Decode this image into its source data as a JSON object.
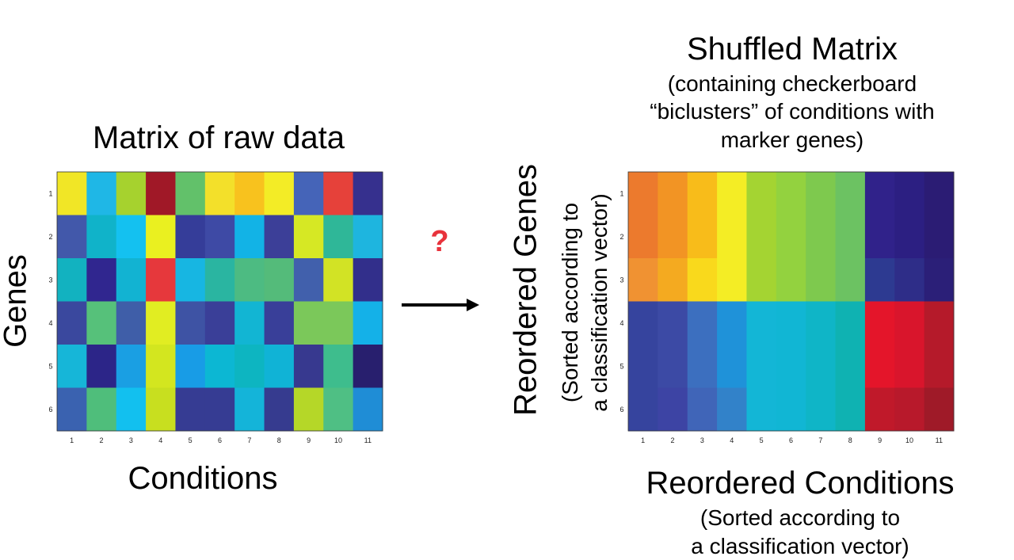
{
  "left": {
    "title": "Matrix of raw data",
    "ylabel": "Genes",
    "xlabel": "Conditions",
    "cols": [
      "1",
      "2",
      "3",
      "4",
      "5",
      "6",
      "7",
      "8",
      "9",
      "10",
      "11"
    ],
    "rows": [
      "1",
      "2",
      "3",
      "4",
      "5",
      "6"
    ],
    "colors": [
      [
        "#f1e626",
        "#1fb7e6",
        "#a6d22e",
        "#a01827",
        "#62c16a",
        "#f3e02a",
        "#f8c21e",
        "#f3ec26",
        "#4564b8",
        "#e6413a",
        "#36308e"
      ],
      [
        "#4258aa",
        "#10b3c9",
        "#14c1f0",
        "#eaf020",
        "#353d99",
        "#3e4aa5",
        "#12b3e6",
        "#3c3f98",
        "#d6e824",
        "#2fb798",
        "#1eb5df"
      ],
      [
        "#12b2c0",
        "#30268f",
        "#12b3d2",
        "#e6383c",
        "#17b6e2",
        "#2ab5a1",
        "#4dbb82",
        "#54bb7a",
        "#4160ac",
        "#d2e325",
        "#322f8b"
      ],
      [
        "#3a489e",
        "#56c17a",
        "#3f5ea8",
        "#e1ed22",
        "#3e53a4",
        "#3a3f98",
        "#12b5d3",
        "#393f99",
        "#7bc85a",
        "#7bc85a",
        "#14b1e8"
      ],
      [
        "#16b6d8",
        "#2c2588",
        "#1a9fe3",
        "#d3e61f",
        "#189ce6",
        "#0cb7d3",
        "#0db5c1",
        "#10b3d6",
        "#37398f",
        "#3ebd8d",
        "#281f6e"
      ],
      [
        "#3a62b0",
        "#4fbe7b",
        "#12c0ef",
        "#c8df1f",
        "#363c93",
        "#363c93",
        "#14b4d9",
        "#363b8f",
        "#b5d728",
        "#4fbf84",
        "#1f8dd6"
      ]
    ]
  },
  "arrow": {
    "label": "?"
  },
  "right": {
    "title": "Shuffled Matrix",
    "subtitle_lines": [
      "(containing checkerboard",
      "“biclusters” of conditions with",
      "marker genes)"
    ],
    "ylabel": "Reordered Genes",
    "ysub_lines": [
      "(Sorted according to",
      "a classification vector)"
    ],
    "xlabel": "Reordered Conditions",
    "xsub_lines": [
      "(Sorted according to",
      "a classification vector)"
    ],
    "cols": [
      "1",
      "2",
      "3",
      "4",
      "5",
      "6",
      "7",
      "8",
      "9",
      "10",
      "11"
    ],
    "rows": [
      "1",
      "2",
      "3",
      "4",
      "5",
      "6"
    ],
    "colors": [
      [
        "#ec7a2d",
        "#f29424",
        "#f8bc1a",
        "#f4ed25",
        "#a4d432",
        "#93d23f",
        "#7ec94e",
        "#6cc262",
        "#30228a",
        "#2c1f82",
        "#2b1c74"
      ],
      [
        "#ec7a2d",
        "#f29424",
        "#f8bc1a",
        "#f4ed25",
        "#a4d432",
        "#93d23f",
        "#7ec94e",
        "#6cc262",
        "#30228a",
        "#2c1f82",
        "#2b1c74"
      ],
      [
        "#f09232",
        "#f4aa20",
        "#f9d91c",
        "#f4ed25",
        "#a4d432",
        "#93d23f",
        "#7ec94e",
        "#6cc262",
        "#2d3a91",
        "#2e2d88",
        "#2b1f78"
      ],
      [
        "#36449e",
        "#3c4aa5",
        "#3c6fbf",
        "#1f92d9",
        "#13b6d6",
        "#11b6d4",
        "#0fb5c7",
        "#0fb2b2",
        "#e4152a",
        "#d9152c",
        "#b51a2a"
      ],
      [
        "#36449e",
        "#3c4aa5",
        "#3c6fbf",
        "#1f92d9",
        "#13b6d6",
        "#11b6d4",
        "#0fb5c7",
        "#0fb2b2",
        "#e4152a",
        "#d9152c",
        "#b51a2a"
      ],
      [
        "#36449e",
        "#3d44a4",
        "#4065b8",
        "#3282c9",
        "#13b6d6",
        "#11b6d4",
        "#0fb5c7",
        "#0fb2b2",
        "#c0192a",
        "#b8192b",
        "#9f1a28"
      ]
    ]
  }
}
